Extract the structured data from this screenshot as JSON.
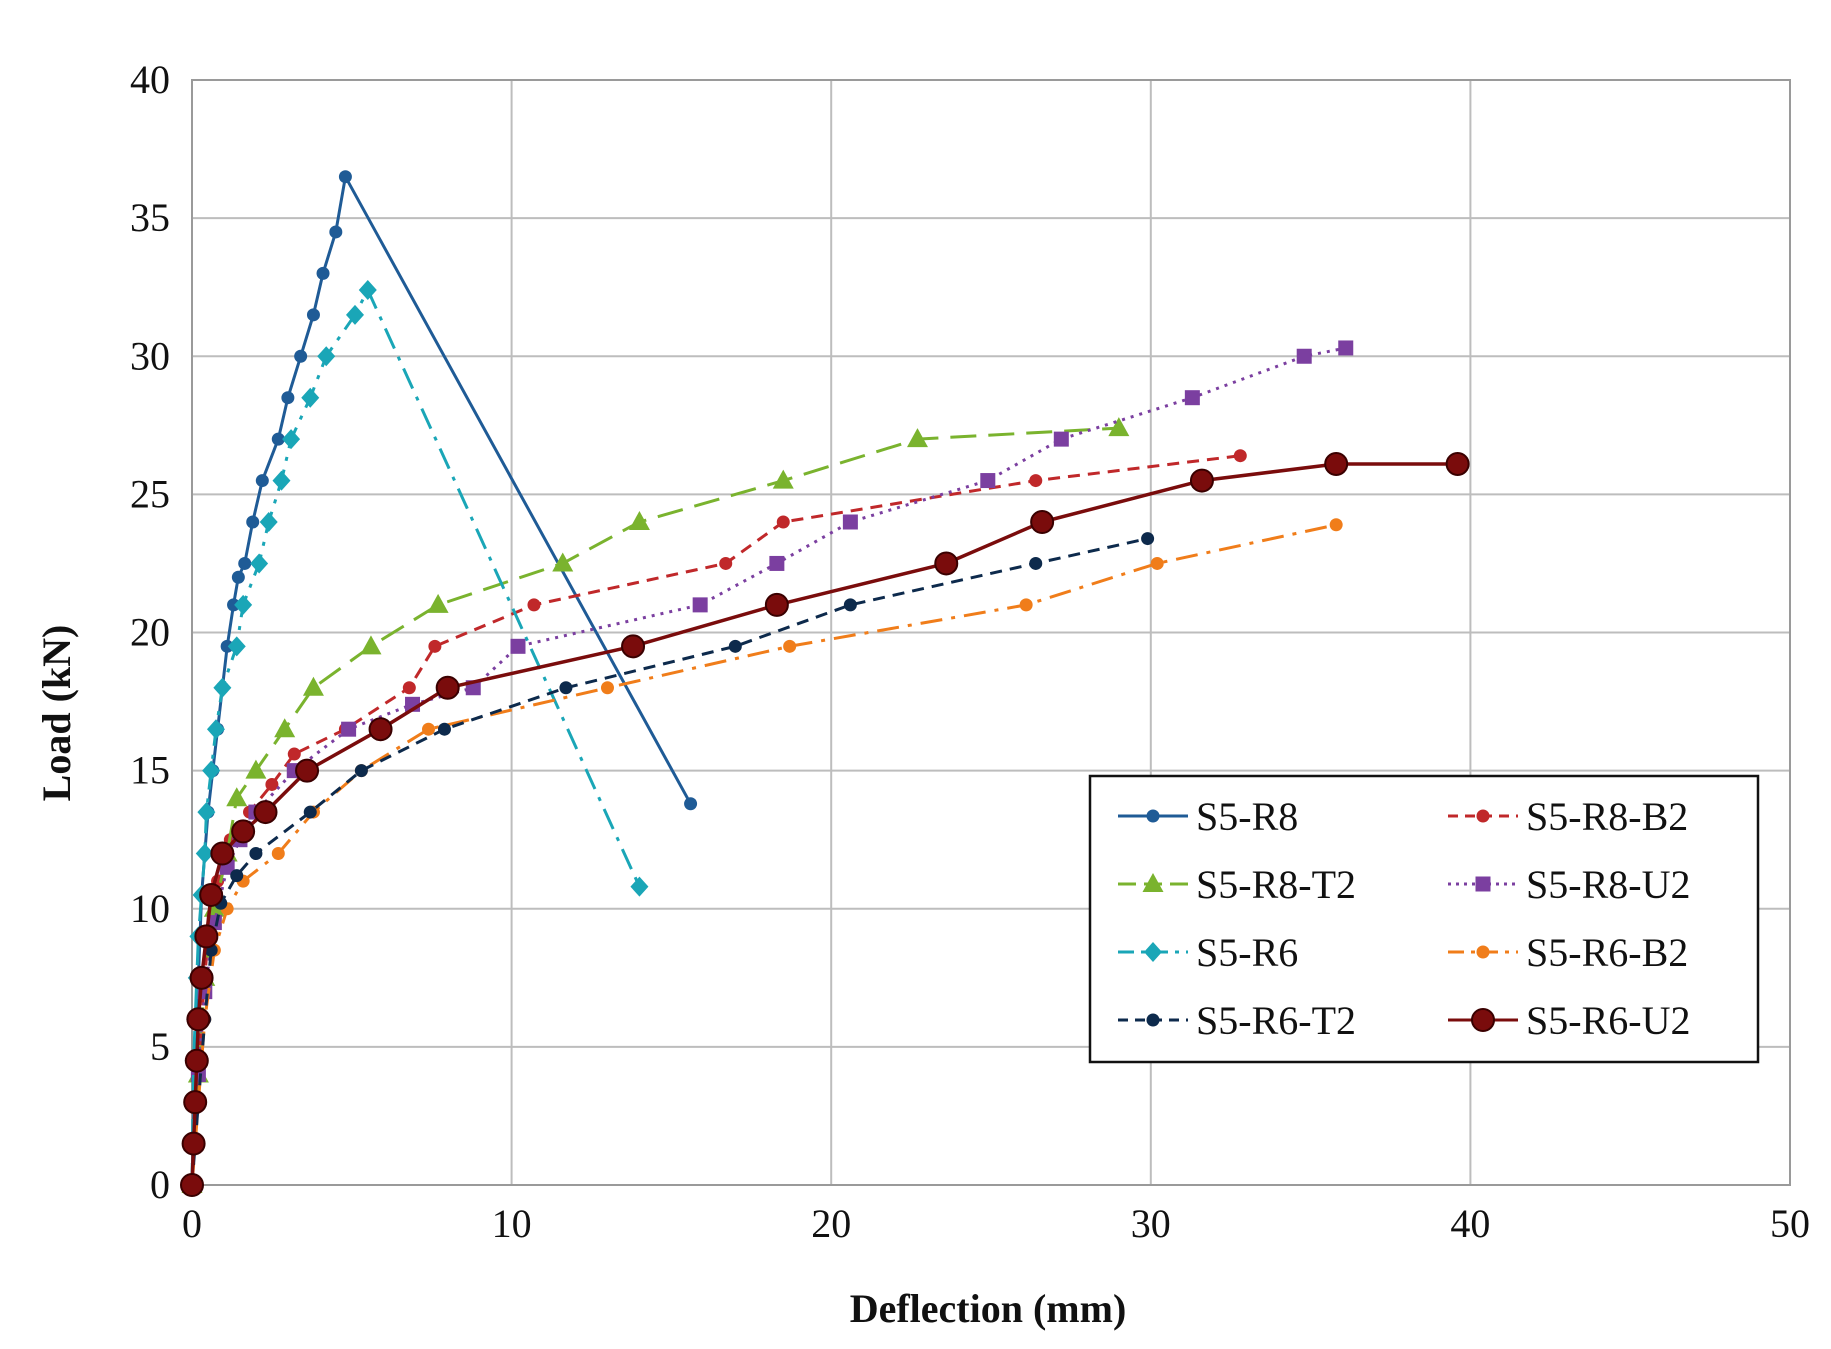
{
  "chart_data": {
    "type": "line",
    "title": "",
    "xlabel": "Deflection (mm)",
    "ylabel": "Load (kN)",
    "xlim": [
      0,
      50
    ],
    "ylim": [
      0,
      40
    ],
    "xticks": [
      0,
      10,
      20,
      30,
      40,
      50
    ],
    "yticks": [
      0,
      5,
      10,
      15,
      20,
      25,
      30,
      35,
      40
    ],
    "xtick_labels": [
      "0",
      "10",
      "20",
      "30",
      "40",
      "50"
    ],
    "ytick_labels": [
      "0",
      "5",
      "10",
      "15",
      "20",
      "25",
      "30",
      "35",
      "40"
    ],
    "grid": true,
    "legend_position": "bottom-right",
    "series": [
      {
        "name": "S5-R8",
        "color": "#1f5b96",
        "marker": "circle",
        "dash": "solid",
        "x": [
          0,
          0.1,
          0.2,
          0.3,
          0.4,
          0.5,
          0.65,
          0.8,
          0.95,
          1.1,
          1.3,
          1.45,
          1.65,
          1.9,
          2.2,
          2.7,
          3.0,
          3.4,
          3.8,
          4.1,
          4.5,
          4.8,
          15.6
        ],
        "y": [
          0,
          4.5,
          7.5,
          10.5,
          12,
          13.5,
          15,
          16.5,
          18,
          19.5,
          21,
          22,
          22.5,
          24,
          25.5,
          27,
          28.5,
          30,
          31.5,
          33,
          34.5,
          36.5,
          13.8
        ]
      },
      {
        "name": "S5-R8-B2",
        "color": "#c0282a",
        "marker": "circle",
        "dash": "dashed",
        "x": [
          0,
          0.15,
          0.3,
          0.5,
          0.8,
          1.2,
          1.8,
          2.5,
          3.2,
          4.8,
          6.8,
          7.6,
          10.7,
          16.7,
          18.5,
          26.4,
          32.8
        ],
        "y": [
          0,
          3,
          6,
          9,
          11,
          12.5,
          13.5,
          14.5,
          15.6,
          16.5,
          18,
          19.5,
          21,
          22.5,
          24,
          25.5,
          26.4
        ]
      },
      {
        "name": "S5-R8-T2",
        "color": "#7ab32e",
        "marker": "triangle",
        "dash": "longdash",
        "x": [
          0,
          0.2,
          0.4,
          0.7,
          1.1,
          1.4,
          2.0,
          2.9,
          3.8,
          5.6,
          7.7,
          11.6,
          14.0,
          18.5,
          22.7,
          29.0
        ],
        "y": [
          0,
          4,
          7.5,
          10,
          12,
          14,
          15,
          16.5,
          18,
          19.5,
          21,
          22.5,
          24,
          25.5,
          27,
          27.4
        ]
      },
      {
        "name": "S5-R8-U2",
        "color": "#7b3fa0",
        "marker": "square",
        "dash": "dotted",
        "x": [
          0,
          0.2,
          0.4,
          0.7,
          1.1,
          1.5,
          2.0,
          3.2,
          4.9,
          6.9,
          8.8,
          10.2,
          15.9,
          18.3,
          20.6,
          24.9,
          27.2,
          31.3,
          34.8,
          36.1
        ],
        "y": [
          0,
          4,
          7,
          9.5,
          11.5,
          12.5,
          13.5,
          15,
          16.5,
          17.4,
          18,
          19.5,
          21,
          22.5,
          24,
          25.5,
          27,
          28.5,
          30,
          30.3
        ]
      },
      {
        "name": "S5-R6",
        "color": "#1aa6b7",
        "marker": "diamond",
        "dash": "dashdot",
        "x": [
          0,
          0.05,
          0.1,
          0.15,
          0.2,
          0.3,
          0.4,
          0.45,
          0.6,
          0.75,
          0.95,
          1.4,
          1.6,
          2.1,
          2.4,
          2.8,
          3.1,
          3.7,
          4.2,
          5.1,
          5.5,
          14.0
        ],
        "y": [
          0,
          4.5,
          6,
          7.5,
          9,
          10.5,
          12,
          13.5,
          15,
          16.5,
          18,
          19.5,
          21,
          22.5,
          24,
          25.5,
          27,
          28.5,
          30,
          31.5,
          32.4,
          10.8
        ]
      },
      {
        "name": "S5-R6-B2",
        "color": "#f07d1a",
        "marker": "circle",
        "dash": "dashdot",
        "x": [
          0,
          0.2,
          0.4,
          0.7,
          1.1,
          1.6,
          2.7,
          3.8,
          5.3,
          7.4,
          13.0,
          18.7,
          26.1,
          30.2,
          35.8
        ],
        "y": [
          0,
          3,
          6,
          8.5,
          10,
          11,
          12,
          13.5,
          15,
          16.5,
          18,
          19.5,
          21,
          22.5,
          23.9
        ]
      },
      {
        "name": "S5-R6-T2",
        "color": "#0d2a4c",
        "marker": "circle",
        "dash": "dashed",
        "x": [
          0,
          0.2,
          0.4,
          0.6,
          0.9,
          1.4,
          2.0,
          3.7,
          5.3,
          7.9,
          11.7,
          17.0,
          20.6,
          26.4,
          29.9
        ],
        "y": [
          0,
          3,
          6,
          8.5,
          10.2,
          11.2,
          12,
          13.5,
          15,
          16.5,
          18,
          19.5,
          21,
          22.5,
          23.4
        ]
      },
      {
        "name": "S5-R6-U2",
        "color": "#7a0c0c",
        "marker": "circle-large",
        "dash": "solid",
        "x": [
          0,
          0.05,
          0.1,
          0.15,
          0.2,
          0.3,
          0.45,
          0.6,
          0.95,
          1.6,
          2.3,
          3.6,
          5.9,
          8.0,
          13.8,
          18.3,
          23.6,
          26.6,
          31.6,
          35.8,
          39.6
        ],
        "y": [
          0,
          1.5,
          3,
          4.5,
          6,
          7.5,
          9,
          10.5,
          12,
          12.8,
          13.5,
          15,
          16.5,
          18,
          19.5,
          21,
          22.5,
          24,
          25.5,
          26.1,
          26.1
        ]
      }
    ]
  }
}
